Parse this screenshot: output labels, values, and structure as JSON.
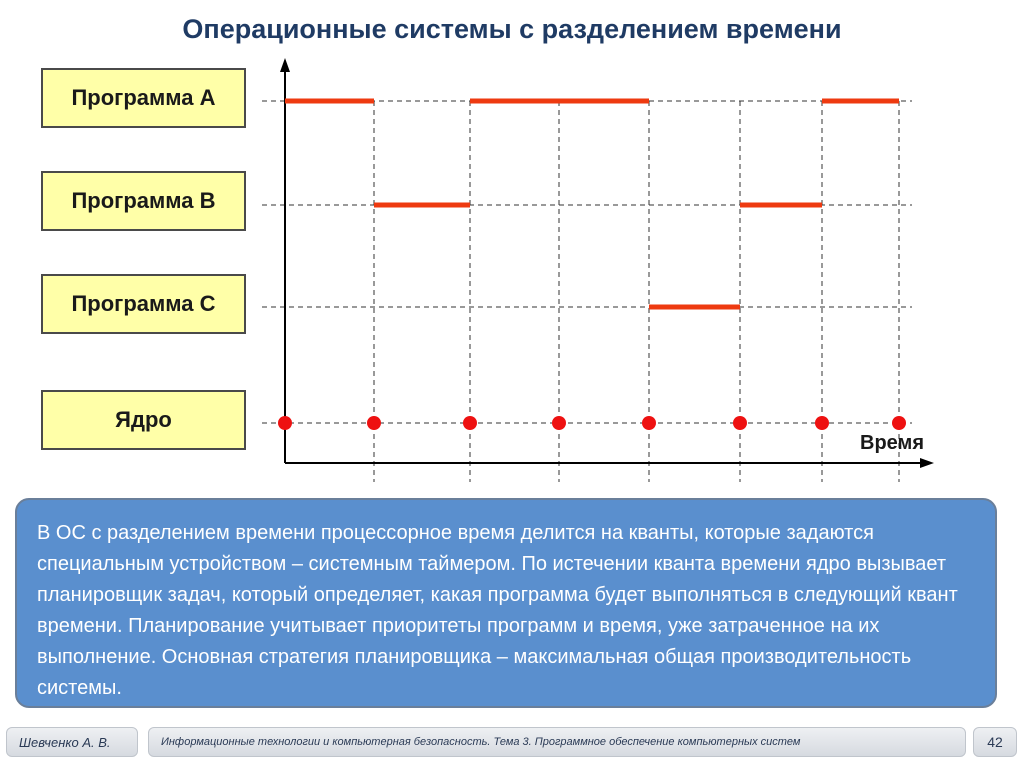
{
  "title": "Операционные системы с разделением времени",
  "rows": [
    {
      "label": "Программа А"
    },
    {
      "label": "Программа В"
    },
    {
      "label": "Программа С"
    },
    {
      "label": "Ядро"
    }
  ],
  "time_axis_label": "Время",
  "schedule": [
    {
      "row": 0,
      "from": 0,
      "to": 1
    },
    {
      "row": 1,
      "from": 1,
      "to": 2
    },
    {
      "row": 0,
      "from": 2,
      "to": 4
    },
    {
      "row": 2,
      "from": 4,
      "to": 5
    },
    {
      "row": 1,
      "from": 5,
      "to": 6
    },
    {
      "row": 0,
      "from": 6,
      "to": 7
    }
  ],
  "kernel_ticks": [
    0,
    1,
    2,
    3,
    4,
    5,
    6,
    7
  ],
  "colors": {
    "active_segment": "#ee3a10",
    "kernel_dot": "#ee1111",
    "axis": "#000000",
    "grid": "#333333"
  },
  "info_text": "В ОС с разделением времени процессорное время делится на кванты, которые задаются специальным устройством – системным таймером. По истечении кванта времени ядро вызывает планировщик задач, который определяет, какая программа будет выполняться в следующий квант времени. Планирование учитывает приоритеты программ и время, уже затраченное на их выполнение. Основная стратегия планировщика – максимальная общая производительность системы.",
  "footer": {
    "author": "Шевченко А. В.",
    "course": "Информационные технологии и компьютерная безопасность. Тема 3. Программное обеспечение компьютерных систем",
    "page": "42"
  }
}
